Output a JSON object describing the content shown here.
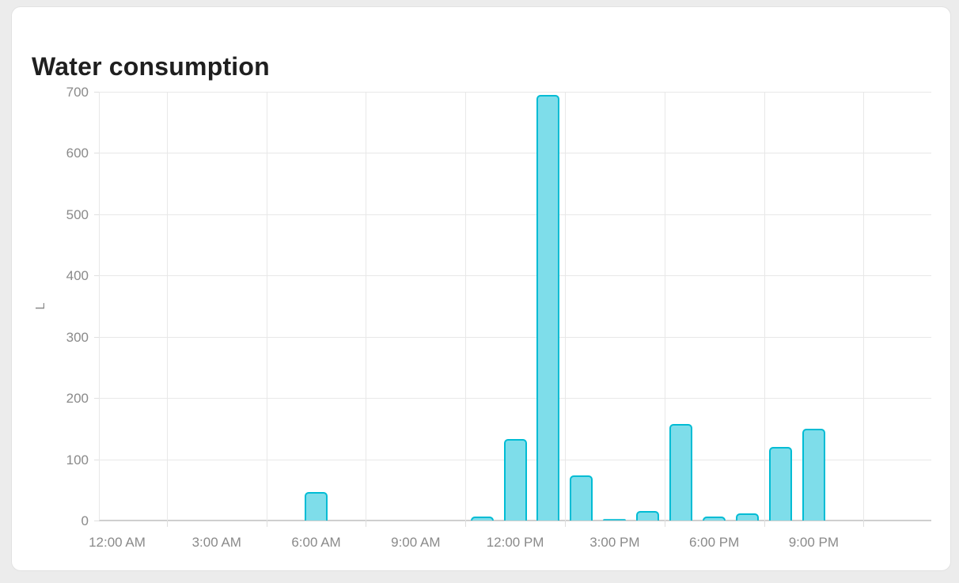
{
  "card": {
    "title": "Water consumption"
  },
  "chart_data": {
    "type": "bar",
    "title": "Water consumption",
    "xlabel": "",
    "ylabel": "L",
    "unit": "L",
    "ylim": [
      0,
      700
    ],
    "y_ticks": [
      0,
      100,
      200,
      300,
      400,
      500,
      600,
      700
    ],
    "x_tick_labels": [
      "12:00 AM",
      "3:00 AM",
      "6:00 AM",
      "9:00 AM",
      "12:00 PM",
      "3:00 PM",
      "6:00 PM",
      "9:00 PM"
    ],
    "x_hours": [
      0,
      1,
      2,
      3,
      4,
      5,
      6,
      7,
      8,
      9,
      10,
      11,
      12,
      13,
      14,
      15,
      16,
      17,
      18,
      19,
      20,
      21,
      22,
      23
    ],
    "series": [
      {
        "name": "Water consumption",
        "values": [
          0,
          0,
          0,
          0,
          0,
          0,
          46,
          0,
          0,
          0,
          0,
          6,
          133,
          695,
          73,
          2,
          16,
          157,
          7,
          11,
          120,
          150,
          0,
          0
        ]
      }
    ],
    "legend": "none",
    "grid": "horizontal lines at every 100 L; vertical gridlines offset halfway between 3-hour labels; darker baseline at 0"
  },
  "colors": {
    "bar_fill": "#7eddea",
    "bar_border": "#00bcd4",
    "gridline": "#e8e8e8",
    "zero_line": "#cfcfcf",
    "axis_label": "#8a8a8a",
    "title_text": "#1f1f1f",
    "card_bg": "#ffffff",
    "card_border": "#e2e2e2",
    "page_bg": "#ececec"
  }
}
